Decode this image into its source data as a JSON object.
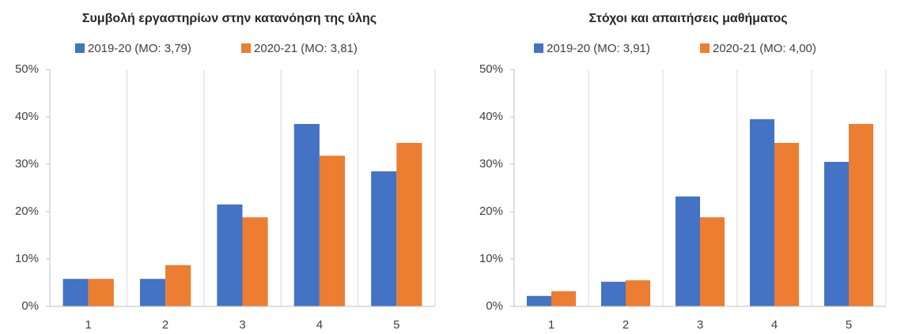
{
  "chart_data": [
    {
      "type": "bar",
      "title": "Συμβολή εργαστηρίων στην κατανόηση της ύλης",
      "categories": [
        "1",
        "2",
        "3",
        "4",
        "5"
      ],
      "series": [
        {
          "name": "2019-20 (ΜΟ: 3,79)",
          "color": "#4472c4",
          "values": [
            5.8,
            5.8,
            21.5,
            38.5,
            28.5
          ]
        },
        {
          "name": "2020-21 (ΜΟ: 3,81)",
          "color": "#ed7d31",
          "values": [
            5.8,
            8.7,
            18.8,
            31.8,
            34.5
          ]
        }
      ],
      "ylim": [
        0,
        50
      ],
      "yticks": [
        {
          "value": 0,
          "label": "0%"
        },
        {
          "value": 10,
          "label": "10%"
        },
        {
          "value": 20,
          "label": "20%"
        },
        {
          "value": 30,
          "label": "30%"
        },
        {
          "value": 40,
          "label": "40%"
        },
        {
          "value": 50,
          "label": "50%"
        }
      ],
      "xgrid": true,
      "legend": "top"
    },
    {
      "type": "bar",
      "title": "Στόχοι και απαιτήσεις μαθήματος",
      "categories": [
        "1",
        "2",
        "3",
        "4",
        "5"
      ],
      "series": [
        {
          "name": "2019-20 (ΜΟ: 3,91)",
          "color": "#4472c4",
          "values": [
            2.2,
            5.2,
            23.2,
            39.5,
            30.5
          ]
        },
        {
          "name": "2020-21 (ΜΟ: 4,00)",
          "color": "#ed7d31",
          "values": [
            3.2,
            5.5,
            18.8,
            34.5,
            38.5
          ]
        }
      ],
      "ylim": [
        0,
        50
      ],
      "yticks": [
        {
          "value": 0,
          "label": "0%"
        },
        {
          "value": 10,
          "label": "10%"
        },
        {
          "value": 20,
          "label": "20%"
        },
        {
          "value": 30,
          "label": "30%"
        },
        {
          "value": 40,
          "label": "40%"
        },
        {
          "value": 50,
          "label": "50%"
        }
      ],
      "xgrid": true,
      "legend": "top"
    }
  ]
}
